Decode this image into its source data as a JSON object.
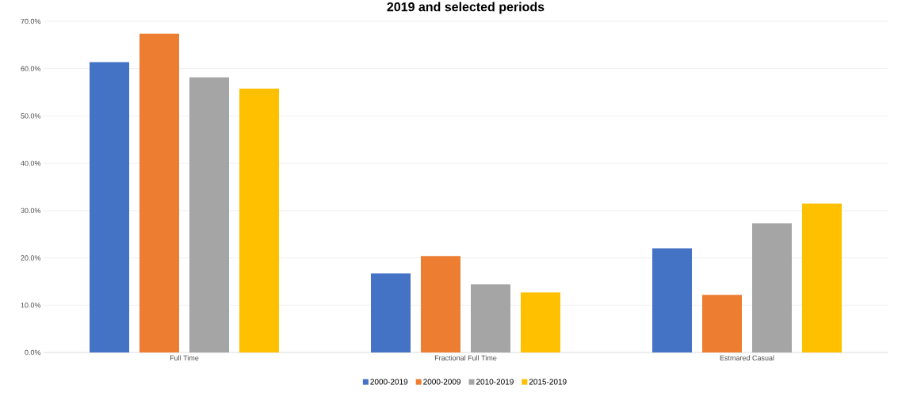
{
  "chart_data": {
    "type": "bar",
    "title": "2019 and selected periods",
    "categories": [
      "Full Time",
      "Fractional Full Time",
      "Estmared Casual"
    ],
    "series": [
      {
        "name": "2000-2019",
        "color": "#4472c4",
        "values": [
          61.4,
          16.7,
          22.0
        ]
      },
      {
        "name": "2000-2009",
        "color": "#ed7d31",
        "values": [
          67.4,
          20.4,
          12.2
        ]
      },
      {
        "name": "2010-2019",
        "color": "#a5a5a5",
        "values": [
          58.2,
          14.4,
          27.3
        ]
      },
      {
        "name": "2015-2019",
        "color": "#ffc000",
        "values": [
          55.8,
          12.7,
          31.5
        ]
      }
    ],
    "ylim": [
      0,
      70
    ],
    "yticks": [
      {
        "value": 0,
        "label": "0.0%"
      },
      {
        "value": 10,
        "label": "10.0%"
      },
      {
        "value": 20,
        "label": "20.0%"
      },
      {
        "value": 30,
        "label": "30.0%"
      },
      {
        "value": 40,
        "label": "40.0%"
      },
      {
        "value": 50,
        "label": "50.0%"
      },
      {
        "value": 60,
        "label": "60.0%"
      },
      {
        "value": 70,
        "label": "70.0%"
      }
    ],
    "grid": "y",
    "legend": "bottom"
  }
}
